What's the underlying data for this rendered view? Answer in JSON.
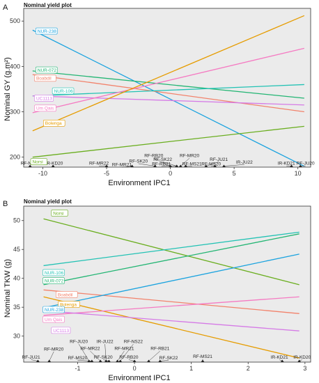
{
  "chart_data": [
    {
      "type": "line",
      "panel": "A",
      "title": "Nominal yield plot",
      "xlabel": "Environment IPC1",
      "ylabel": "Nominal GY (g.m²)",
      "xlim": [
        -11.5,
        11
      ],
      "ylim": [
        178,
        528
      ],
      "xticks": [
        -10,
        -5,
        0,
        5,
        10
      ],
      "yticks": [
        200,
        300,
        400,
        500
      ],
      "line_x": [
        -10.8,
        10.5
      ],
      "series": [
        {
          "name": "NUR-238",
          "color": "#1ba3df",
          "y": [
            480,
            180
          ],
          "label_pos": [
            -10.5,
            478
          ]
        },
        {
          "name": "NUR-072",
          "color": "#22b573",
          "y": [
            390,
            330
          ],
          "label_pos": [
            -10.5,
            392
          ]
        },
        {
          "name": "Boabdil",
          "color": "#f2826b",
          "y": [
            382,
            300
          ],
          "label_pos": [
            -10.6,
            374
          ]
        },
        {
          "name": "NUR-106",
          "color": "#22c2b4",
          "y": [
            335,
            360
          ],
          "label_pos": [
            -9.2,
            346
          ]
        },
        {
          "name": "UC1113",
          "color": "#d57ae6",
          "y": [
            335,
            315
          ],
          "label_pos": [
            -10.6,
            330
          ]
        },
        {
          "name": "Um Qais",
          "color": "#f57ac2",
          "y": [
            298,
            440
          ],
          "label_pos": [
            -10.6,
            308
          ]
        },
        {
          "name": "Bolenga",
          "color": "#e69c00",
          "y": [
            258,
            512
          ],
          "label_pos": [
            -9.9,
            275
          ]
        },
        {
          "name": "Norsi",
          "color": "#6aae1f",
          "y": [
            200,
            268
          ],
          "label_pos": [
            -10.9,
            190
          ]
        }
      ],
      "environments": [
        {
          "name": "RF-NS22",
          "x": -11.0,
          "label": [
            -11.0,
            183
          ]
        },
        {
          "name": "IR-KD20",
          "x": -9.2,
          "label": [
            -9.1,
            183
          ]
        },
        {
          "name": "RF-MR22",
          "x": -5.0,
          "label": [
            -5.6,
            183
          ]
        },
        {
          "name": "RF-MR21",
          "x": -3.0,
          "label": [
            -3.8,
            180
          ]
        },
        {
          "name": "RF-SK20",
          "x": -1.2,
          "label": [
            -2.5,
            188
          ]
        },
        {
          "name": "RF-RB20",
          "x": 0.0,
          "label": [
            -1.3,
            200
          ]
        },
        {
          "name": "RF-RB21",
          "x": 0.5,
          "label": [
            -0.7,
            182
          ]
        },
        {
          "name": "RF-SK22",
          "x": 0.5,
          "label": [
            -0.6,
            192
          ]
        },
        {
          "name": "RF-MR20",
          "x": 0.8,
          "label": [
            1.5,
            200
          ]
        },
        {
          "name": "RF-MS21",
          "x": 1.2,
          "label": [
            1.7,
            182
          ]
        },
        {
          "name": "RF-JU21",
          "x": 2.8,
          "label": [
            3.8,
            192
          ]
        },
        {
          "name": "RF-MS20",
          "x": 3.5,
          "label": [
            3.2,
            182
          ]
        },
        {
          "name": "IR-JU22",
          "x": 4.2,
          "label": [
            5.8,
            186
          ]
        },
        {
          "name": "IR-KD21",
          "x": 9.5,
          "label": [
            9.1,
            183
          ]
        },
        {
          "name": "RF-JU20",
          "x": 10.2,
          "label": [
            10.6,
            183
          ]
        }
      ]
    },
    {
      "type": "line",
      "panel": "B",
      "title": "Nominal yield plot",
      "xlabel": "Environment IPC1",
      "ylabel": "Nominal TKW (g)",
      "xlim": [
        -1.95,
        3.1
      ],
      "ylim": [
        25.5,
        52.5
      ],
      "xticks": [
        -1,
        0,
        1,
        2,
        3
      ],
      "yticks": [
        30,
        35,
        40,
        45,
        50
      ],
      "line_x": [
        -1.6,
        2.9
      ],
      "series": [
        {
          "name": "Norsi",
          "color": "#6aae1f",
          "y": [
            50.3,
            38.9
          ],
          "label_pos": [
            -1.45,
            51.3
          ]
        },
        {
          "name": "NUR-106",
          "color": "#22c2b4",
          "y": [
            42.2,
            48.0
          ],
          "label_pos": [
            -1.6,
            41.0
          ]
        },
        {
          "name": "NUR-072",
          "color": "#22b573",
          "y": [
            38.9,
            47.7
          ],
          "label_pos": [
            -1.6,
            39.6
          ]
        },
        {
          "name": "Boabdil",
          "color": "#f2826b",
          "y": [
            38.0,
            33.9
          ],
          "label_pos": [
            -1.37,
            37.2
          ]
        },
        {
          "name": "Bolenga",
          "color": "#e69c00",
          "y": [
            36.8,
            26.2
          ],
          "label_pos": [
            -1.33,
            35.5
          ]
        },
        {
          "name": "NUR-238",
          "color": "#1ba3df",
          "y": [
            34.9,
            44.2
          ],
          "label_pos": [
            -1.6,
            34.6
          ]
        },
        {
          "name": "Um Qais",
          "color": "#f57ac2",
          "y": [
            33.6,
            36.8
          ],
          "label_pos": [
            -1.6,
            32.9
          ]
        },
        {
          "name": "UC1113",
          "color": "#d57ae6",
          "y": [
            34.4,
            30.9
          ],
          "label_pos": [
            -1.45,
            31.0
          ]
        }
      ],
      "environments": [
        {
          "name": "RF-JU21",
          "x": -1.7,
          "label": [
            -1.82,
            26.1
          ]
        },
        {
          "name": "RF-MR20",
          "x": -1.5,
          "label": [
            -1.42,
            27.5
          ]
        },
        {
          "name": "RF-JU20",
          "x": -0.8,
          "label": [
            -0.98,
            28.8
          ]
        },
        {
          "name": "RF-MS20",
          "x": -0.75,
          "label": [
            -1.0,
            26.0
          ]
        },
        {
          "name": "RF-MR22",
          "x": -0.6,
          "label": [
            -0.78,
            27.6
          ]
        },
        {
          "name": "IR-JU22",
          "x": -0.5,
          "label": [
            -0.52,
            28.8
          ]
        },
        {
          "name": "RF-SK20",
          "x": -0.45,
          "label": [
            -0.55,
            26.1
          ]
        },
        {
          "name": "RF-MR21",
          "x": -0.3,
          "label": [
            -0.18,
            27.6
          ]
        },
        {
          "name": "RF-NS22",
          "x": -0.25,
          "label": [
            -0.02,
            28.8
          ]
        },
        {
          "name": "RF-RB20",
          "x": 0.0,
          "label": [
            -0.1,
            26.1
          ]
        },
        {
          "name": "RF-RB21",
          "x": 0.25,
          "label": [
            0.45,
            27.6
          ]
        },
        {
          "name": "RF-SK22",
          "x": 0.45,
          "label": [
            0.6,
            26.0
          ]
        },
        {
          "name": "RF-MS21",
          "x": 1.2,
          "label": [
            1.2,
            26.2
          ]
        },
        {
          "name": "IR-KD21",
          "x": 2.6,
          "label": [
            2.55,
            26.1
          ]
        },
        {
          "name": "IR-KD20",
          "x": 2.9,
          "label": [
            2.95,
            26.1
          ]
        }
      ]
    }
  ],
  "panels": {
    "a": {
      "tag": "A",
      "title": "Nominal yield plot",
      "xlabel": "Environment IPC1",
      "ylabel": "Nominal GY (g.m²)"
    },
    "b": {
      "tag": "B",
      "title": "Nominal yield plot",
      "xlabel": "Environment IPC1",
      "ylabel": "Nominal TKW (g)"
    }
  }
}
